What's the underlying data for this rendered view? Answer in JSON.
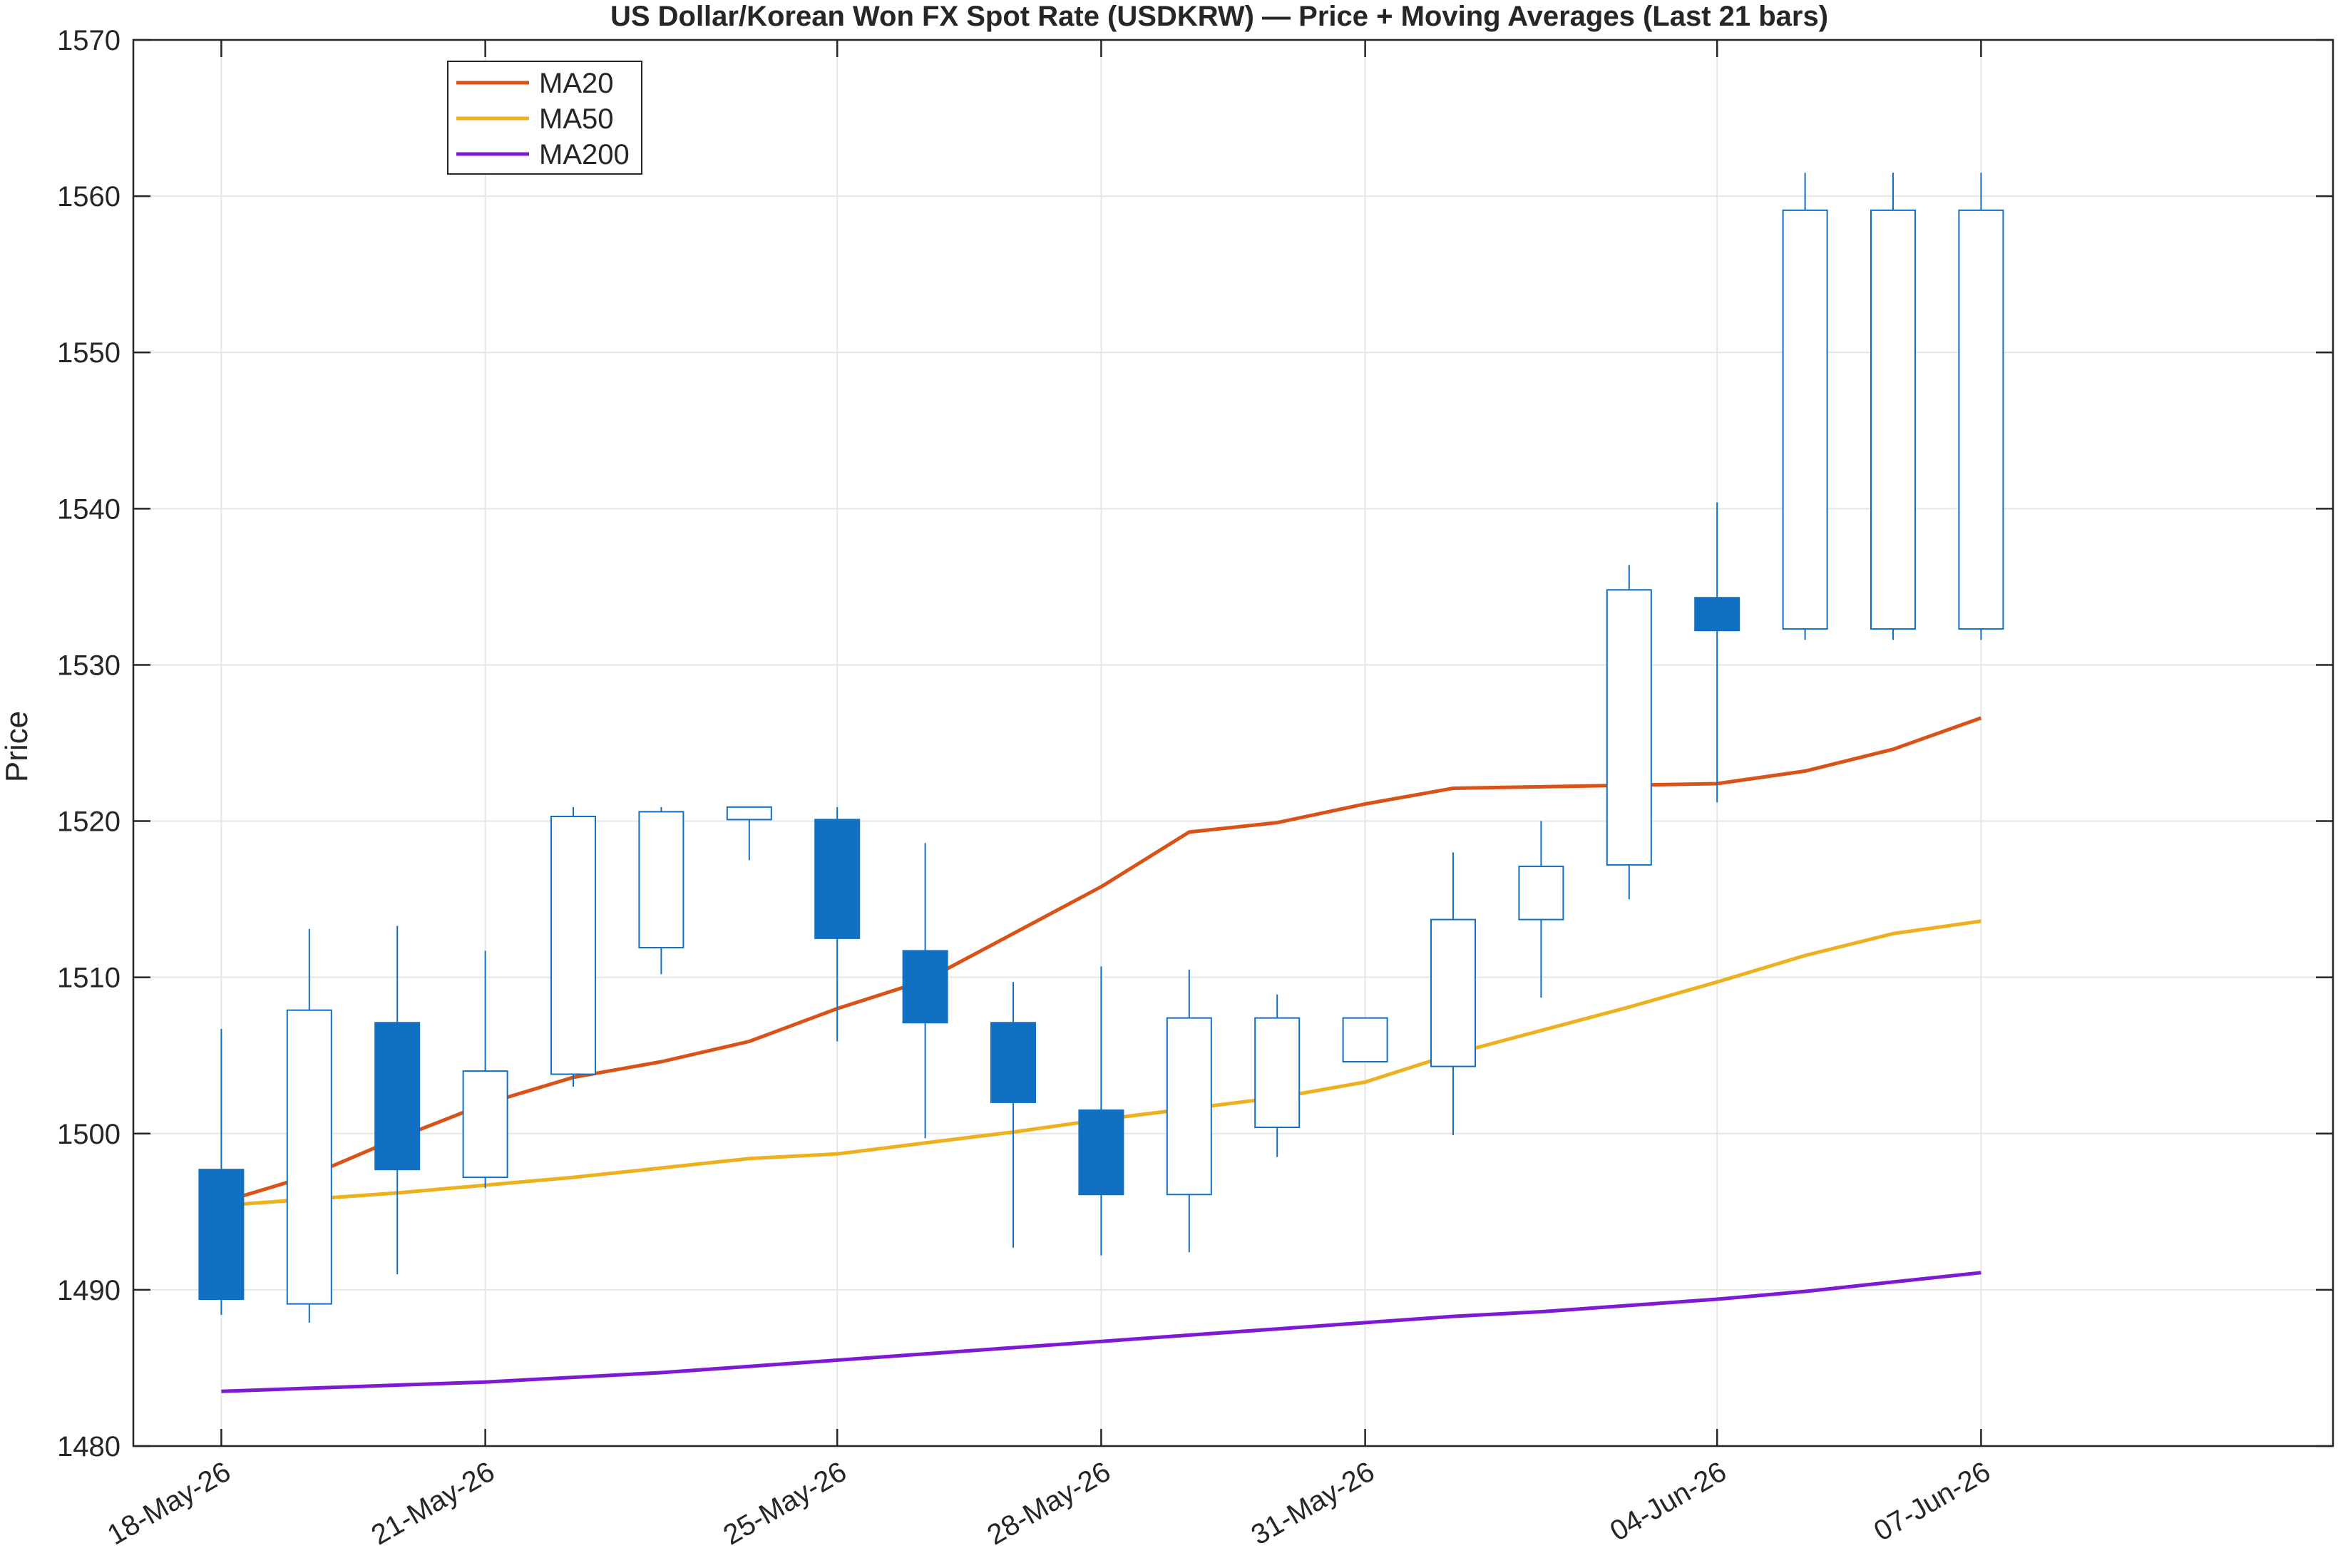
{
  "chart_data": {
    "type": "candlestick",
    "title": "US Dollar/Korean Won FX Spot Rate (USDKRW) — Price + Moving Averages (Last 21 bars)",
    "xlabel": "",
    "ylabel": "Price",
    "ylim": [
      1480,
      1570
    ],
    "yticks": [
      1480,
      1490,
      1500,
      1510,
      1520,
      1530,
      1540,
      1550,
      1560,
      1570
    ],
    "xlim": [
      "17-May-26",
      "11-Jun-26"
    ],
    "xticks": [
      {
        "date": "18-May-26",
        "label": "18-May-26"
      },
      {
        "date": "21-May-26",
        "label": "21-May-26"
      },
      {
        "date": "25-May-26",
        "label": "25-May-26"
      },
      {
        "date": "28-May-26",
        "label": "28-May-26"
      },
      {
        "date": "31-May-26",
        "label": "31-May-26"
      },
      {
        "date": "04-Jun-26",
        "label": "04-Jun-26"
      },
      {
        "date": "07-Jun-26",
        "label": "07-Jun-26"
      }
    ],
    "grid": true,
    "legend_position": "top-left",
    "colors": {
      "candle": "#1170c2",
      "MA20": "#d95319",
      "MA50": "#edb120",
      "MA200": "#7e1ad4",
      "grid": "#e6e6e6",
      "axis": "#262626"
    },
    "candles": [
      {
        "date": "18-May-26",
        "open": 1497.7,
        "high": 1506.7,
        "low": 1488.4,
        "close": 1489.4
      },
      {
        "date": "19-May-26",
        "open": 1489.1,
        "high": 1513.1,
        "low": 1487.9,
        "close": 1507.9
      },
      {
        "date": "20-May-26",
        "open": 1507.1,
        "high": 1513.3,
        "low": 1491.0,
        "close": 1497.7
      },
      {
        "date": "21-May-26",
        "open": 1497.2,
        "high": 1511.7,
        "low": 1496.5,
        "close": 1504.0
      },
      {
        "date": "22-May-26",
        "open": 1503.8,
        "high": 1520.9,
        "low": 1503.0,
        "close": 1520.3
      },
      {
        "date": "23-May-26",
        "open": 1511.9,
        "high": 1520.9,
        "low": 1510.2,
        "close": 1520.6
      },
      {
        "date": "24-May-26",
        "open": 1520.1,
        "high": 1520.9,
        "low": 1517.5,
        "close": 1520.9
      },
      {
        "date": "25-May-26",
        "open": 1520.1,
        "high": 1520.9,
        "low": 1505.9,
        "close": 1512.5
      },
      {
        "date": "26-May-26",
        "open": 1511.7,
        "high": 1518.6,
        "low": 1499.7,
        "close": 1507.1
      },
      {
        "date": "27-May-26",
        "open": 1507.1,
        "high": 1509.7,
        "low": 1492.7,
        "close": 1502.0
      },
      {
        "date": "28-May-26",
        "open": 1501.5,
        "high": 1510.7,
        "low": 1492.2,
        "close": 1496.1
      },
      {
        "date": "29-May-26",
        "open": 1496.1,
        "high": 1510.5,
        "low": 1492.4,
        "close": 1507.4
      },
      {
        "date": "30-May-26",
        "open": 1500.4,
        "high": 1508.9,
        "low": 1498.5,
        "close": 1507.4
      },
      {
        "date": "31-May-26",
        "open": 1504.6,
        "high": 1507.4,
        "low": 1504.6,
        "close": 1507.4
      },
      {
        "date": "01-Jun-26",
        "open": 1504.3,
        "high": 1518.0,
        "low": 1499.9,
        "close": 1513.7
      },
      {
        "date": "02-Jun-26",
        "open": 1513.7,
        "high": 1520.0,
        "low": 1508.7,
        "close": 1517.1
      },
      {
        "date": "03-Jun-26",
        "open": 1517.2,
        "high": 1536.4,
        "low": 1515.0,
        "close": 1534.8
      },
      {
        "date": "04-Jun-26",
        "open": 1534.3,
        "high": 1540.4,
        "low": 1521.2,
        "close": 1532.2
      },
      {
        "date": "05-Jun-26",
        "open": 1532.3,
        "high": 1561.5,
        "low": 1531.6,
        "close": 1559.1
      },
      {
        "date": "06-Jun-26",
        "open": 1532.3,
        "high": 1561.5,
        "low": 1531.6,
        "close": 1559.1
      },
      {
        "date": "07-Jun-26",
        "open": 1532.3,
        "high": 1561.5,
        "low": 1531.6,
        "close": 1559.1
      }
    ],
    "series": [
      {
        "name": "MA20",
        "color": "#d95319",
        "x": [
          "18-May-26",
          "19-May-26",
          "20-May-26",
          "21-May-26",
          "22-May-26",
          "23-May-26",
          "24-May-26",
          "25-May-26",
          "26-May-26",
          "27-May-26",
          "28-May-26",
          "29-May-26",
          "30-May-26",
          "31-May-26",
          "01-Jun-26",
          "02-Jun-26",
          "03-Jun-26",
          "04-Jun-26",
          "05-Jun-26",
          "06-Jun-26",
          "07-Jun-26"
        ],
        "values": [
          1495.6,
          1497.3,
          1499.7,
          1501.9,
          1503.6,
          1504.6,
          1505.9,
          1508.0,
          1509.8,
          1512.8,
          1515.8,
          1519.3,
          1519.9,
          1521.1,
          1522.1,
          1522.2,
          1522.3,
          1522.4,
          1523.2,
          1524.6,
          1526.6
        ]
      },
      {
        "name": "MA50",
        "color": "#edb120",
        "x": [
          "18-May-26",
          "19-May-26",
          "20-May-26",
          "21-May-26",
          "22-May-26",
          "23-May-26",
          "24-May-26",
          "25-May-26",
          "26-May-26",
          "27-May-26",
          "28-May-26",
          "29-May-26",
          "30-May-26",
          "31-May-26",
          "01-Jun-26",
          "02-Jun-26",
          "03-Jun-26",
          "04-Jun-26",
          "05-Jun-26",
          "06-Jun-26",
          "07-Jun-26"
        ],
        "values": [
          1495.4,
          1495.8,
          1496.2,
          1496.7,
          1497.2,
          1497.8,
          1498.4,
          1498.7,
          1499.4,
          1500.1,
          1500.9,
          1501.6,
          1502.3,
          1503.3,
          1505.1,
          1506.6,
          1508.1,
          1509.7,
          1511.4,
          1512.8,
          1513.6
        ]
      },
      {
        "name": "MA200",
        "color": "#7e1ad4",
        "x": [
          "18-May-26",
          "19-May-26",
          "20-May-26",
          "21-May-26",
          "22-May-26",
          "23-May-26",
          "24-May-26",
          "25-May-26",
          "26-May-26",
          "27-May-26",
          "28-May-26",
          "29-May-26",
          "30-May-26",
          "31-May-26",
          "01-Jun-26",
          "02-Jun-26",
          "03-Jun-26",
          "04-Jun-26",
          "05-Jun-26",
          "06-Jun-26",
          "07-Jun-26"
        ],
        "values": [
          1483.5,
          1483.7,
          1483.9,
          1484.1,
          1484.4,
          1484.7,
          1485.1,
          1485.5,
          1485.9,
          1486.3,
          1486.7,
          1487.1,
          1487.5,
          1487.9,
          1488.3,
          1488.6,
          1489.0,
          1489.4,
          1489.9,
          1490.5,
          1491.1
        ]
      }
    ]
  }
}
